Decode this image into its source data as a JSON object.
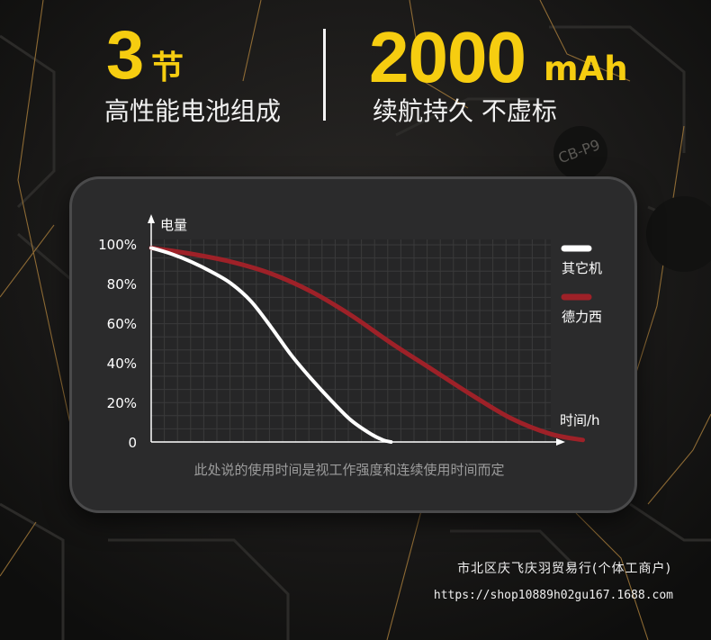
{
  "hero": {
    "left_number": "3",
    "left_unit": "节",
    "left_subtitle": "高性能电池组成",
    "right_number": "2000",
    "right_unit": "mAh",
    "right_subtitle": "续航持久 不虚标"
  },
  "colors": {
    "accent_yellow": "#f6cd10",
    "series_other": "#ffffff",
    "series_delixi": "#9e2128",
    "panel_bg": "#2b2b2c"
  },
  "chart_data": {
    "type": "line",
    "ylabel": "电量",
    "xlabel": "时间/h",
    "y_ticks": [
      "100%",
      "80%",
      "60%",
      "40%",
      "20%",
      "0"
    ],
    "ylim": [
      0,
      100
    ],
    "xlim": [
      0,
      10
    ],
    "grid": true,
    "legend_placement": "right",
    "caption": "此处说的使用时间是视工作强度和连续使用时间而定",
    "series": [
      {
        "name": "其它机",
        "color": "#ffffff",
        "x": [
          0,
          0.5,
          1.0,
          1.5,
          2.0,
          2.5,
          3.0,
          3.5,
          4.0,
          4.5,
          5.0,
          5.5,
          5.8,
          6.0
        ],
        "y": [
          98,
          95,
          91,
          86,
          80,
          71,
          58,
          44,
          32,
          21,
          11,
          4,
          1,
          0
        ]
      },
      {
        "name": "德力西",
        "color": "#9e2128",
        "x": [
          0,
          1,
          2,
          3,
          4,
          5,
          6,
          7,
          8,
          9,
          10,
          10.8
        ],
        "y": [
          98,
          95,
          91,
          85,
          76,
          64,
          50,
          37,
          24,
          12,
          4,
          1
        ]
      }
    ]
  },
  "footer": {
    "company": "市北区庆飞庆羽贸易行(个体工商户)",
    "url": "https://shop10889h02gu167.1688.com"
  }
}
